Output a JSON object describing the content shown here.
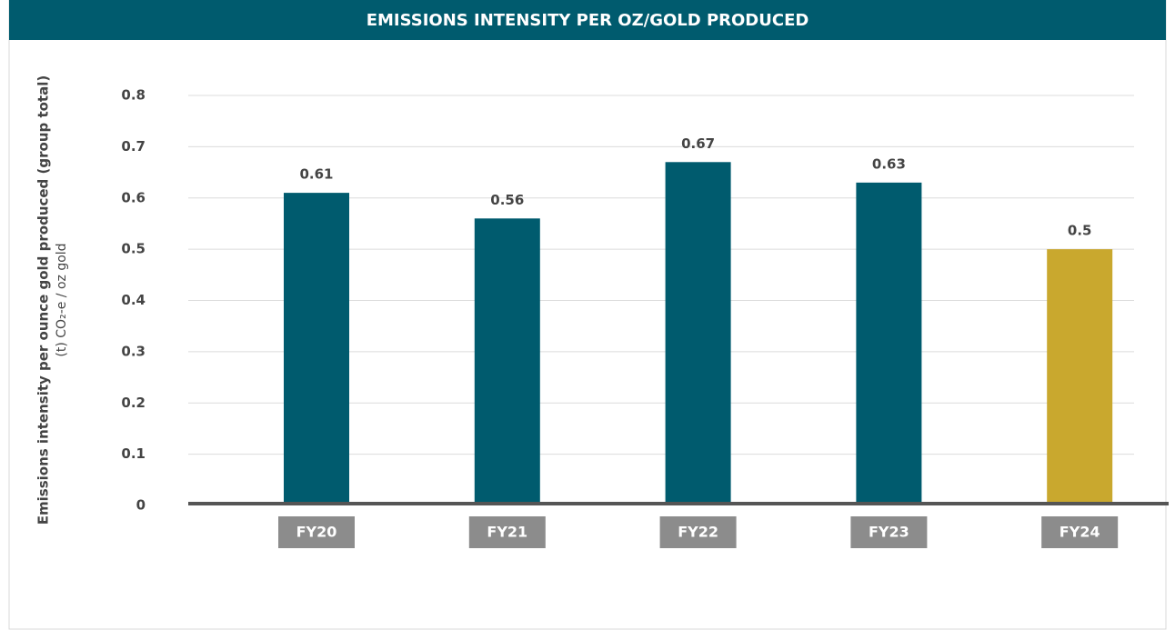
{
  "chart_data": {
    "type": "bar",
    "title": "EMISSIONS INTENSITY PER OZ/GOLD PRODUCED",
    "y_label": "Emissions intensity per ounce gold produced (group total)",
    "y_sublabel": "(t) CO₂-e / oz gold",
    "categories": [
      "FY20",
      "FY21",
      "FY22",
      "FY23",
      "FY24"
    ],
    "values": [
      0.61,
      0.56,
      0.67,
      0.63,
      0.5
    ],
    "colors": [
      "#005b6e",
      "#005b6e",
      "#005b6e",
      "#005b6e",
      "#c9a82e"
    ],
    "ylim": [
      0,
      0.8
    ],
    "yticks": [
      0,
      0.1,
      0.2,
      0.3,
      0.4,
      0.5,
      0.6,
      0.7,
      0.8
    ],
    "grid": true
  }
}
